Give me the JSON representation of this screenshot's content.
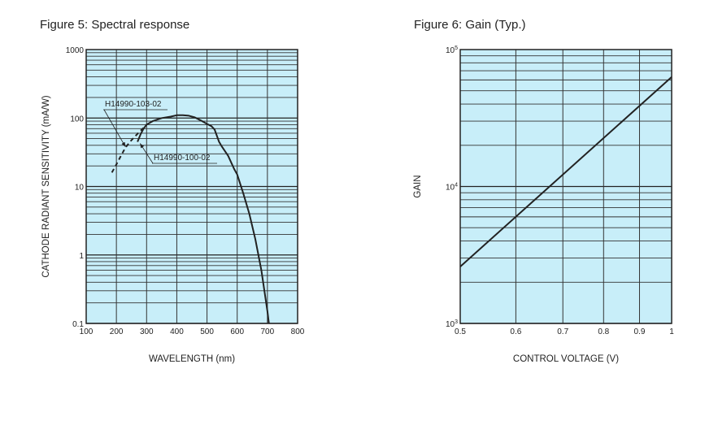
{
  "chart_data": [
    {
      "type": "line",
      "title": "Figure 5: Spectral response",
      "xlabel": "WAVELENGTH (nm)",
      "ylabel": "CATHODE RADIANT SENSITIVITY (mA/W)",
      "xlim": [
        100,
        800
      ],
      "ylim": [
        0.1,
        1000
      ],
      "yscale": "log",
      "xticks": [
        "100",
        "200",
        "300",
        "400",
        "500",
        "600",
        "700",
        "800"
      ],
      "xtick_values": [
        100,
        200,
        300,
        400,
        500,
        600,
        700,
        800
      ],
      "yticks": [
        "0.1",
        "1",
        "10",
        "100",
        "1000"
      ],
      "ytick_values": [
        0.1,
        1,
        10,
        100,
        1000
      ],
      "grid": true,
      "fill_color": "#c8eef9",
      "series": [
        {
          "name": "H14990-100-02",
          "style": "solid",
          "x": [
            270,
            280,
            290,
            300,
            320,
            350,
            380,
            400,
            420,
            440,
            460,
            480,
            500,
            515,
            525,
            540,
            550,
            570,
            590,
            600,
            620,
            640,
            660,
            680,
            700,
            705
          ],
          "y": [
            45,
            58,
            70,
            80,
            90,
            100,
            105,
            110,
            110,
            108,
            102,
            92,
            82,
            76,
            68,
            45,
            38,
            28,
            18,
            15,
            8,
            4,
            1.7,
            0.6,
            0.15,
            0.1
          ]
        },
        {
          "name": "H14990-103-02",
          "style": "dashed",
          "x": [
            185,
            200,
            215,
            230,
            245,
            260,
            275,
            290,
            300
          ],
          "y": [
            16,
            21,
            28,
            37,
            45,
            53,
            62,
            72,
            80
          ]
        }
      ],
      "annotations": [
        {
          "text": "H14990-103-02",
          "points_to": [
            230,
            38
          ]
        },
        {
          "text": "H14990-100-02",
          "points_to": [
            273,
            45
          ]
        }
      ]
    },
    {
      "type": "line",
      "title": "Figure 6: Gain (Typ.)",
      "xlabel": "CONTROL VOLTAGE (V)",
      "ylabel": "GAIN",
      "xlim": [
        0.5,
        1
      ],
      "ylim": [
        1000,
        100000
      ],
      "xscale": "log",
      "yscale": "log",
      "xticks": [
        "0.5",
        "0.6",
        "0.7",
        "0.8",
        "0.9",
        "1"
      ],
      "xtick_values": [
        0.5,
        0.6,
        0.7,
        0.8,
        0.9,
        1
      ],
      "yticks": [
        {
          "base": "10",
          "exp": "3"
        },
        {
          "base": "10",
          "exp": "4"
        },
        {
          "base": "10",
          "exp": "5"
        }
      ],
      "ytick_values": [
        1000,
        10000,
        100000
      ],
      "grid": true,
      "fill_color": "#c8eef9",
      "series": [
        {
          "name": "Gain",
          "style": "solid",
          "x": [
            0.5,
            1
          ],
          "y": [
            2600,
            63000
          ]
        }
      ]
    }
  ]
}
